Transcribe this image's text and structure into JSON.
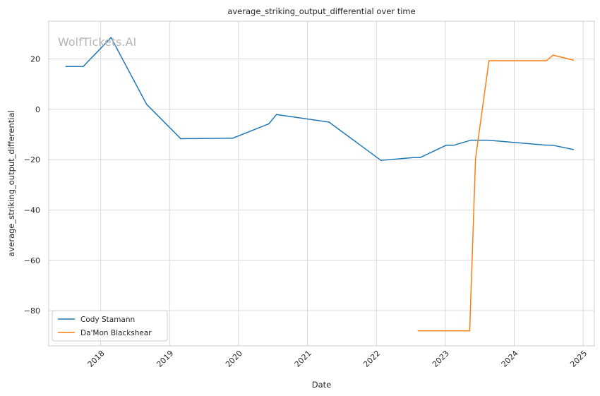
{
  "chart_data": {
    "type": "line",
    "title": "average_striking_output_differential over time",
    "xlabel": "Date",
    "ylabel": "average_striking_output_differential",
    "watermark": "WolfTickets.AI",
    "xlim": [
      "2017-04-01",
      "2025-03-01"
    ],
    "ylim": [
      -94,
      35
    ],
    "x_ticks": [
      "2018",
      "2019",
      "2020",
      "2021",
      "2022",
      "2023",
      "2024",
      "2025"
    ],
    "y_ticks": [
      20,
      0,
      -20,
      -40,
      -60,
      -80
    ],
    "y_tick_labels": [
      "20",
      "0",
      "−20",
      "−40",
      "−60",
      "−80"
    ],
    "grid": true,
    "legend_position": "lower-left",
    "series": [
      {
        "name": "Cody Stamann",
        "color": "#1f77b4",
        "points": [
          [
            "2017-07-01",
            17
          ],
          [
            "2017-10-01",
            17
          ],
          [
            "2018-02-25",
            28.5
          ],
          [
            "2018-09-01",
            2
          ],
          [
            "2019-03-01",
            -11.7
          ],
          [
            "2019-12-01",
            -11.5
          ],
          [
            "2020-06-10",
            -5.8
          ],
          [
            "2020-07-20",
            -2.1
          ],
          [
            "2021-04-25",
            -5.1
          ],
          [
            "2022-01-25",
            -20.3
          ],
          [
            "2022-07-15",
            -19.2
          ],
          [
            "2022-08-20",
            -19.2
          ],
          [
            "2023-01-05",
            -14.3
          ],
          [
            "2023-02-15",
            -14.3
          ],
          [
            "2023-05-15",
            -12.3
          ],
          [
            "2023-08-15",
            -12.3
          ],
          [
            "2024-06-10",
            -14.2
          ],
          [
            "2024-07-25",
            -14.3
          ],
          [
            "2024-11-10",
            -16
          ]
        ]
      },
      {
        "name": "Da'Mon Blackshear",
        "color": "#ff7f0e",
        "points": [
          [
            "2022-08-10",
            -88
          ],
          [
            "2023-05-10",
            -88
          ],
          [
            "2023-06-10",
            -19.5
          ],
          [
            "2023-08-20",
            19.3
          ],
          [
            "2024-06-20",
            19.3
          ],
          [
            "2024-07-25",
            21.5
          ],
          [
            "2024-11-10",
            19.5
          ]
        ]
      }
    ]
  }
}
